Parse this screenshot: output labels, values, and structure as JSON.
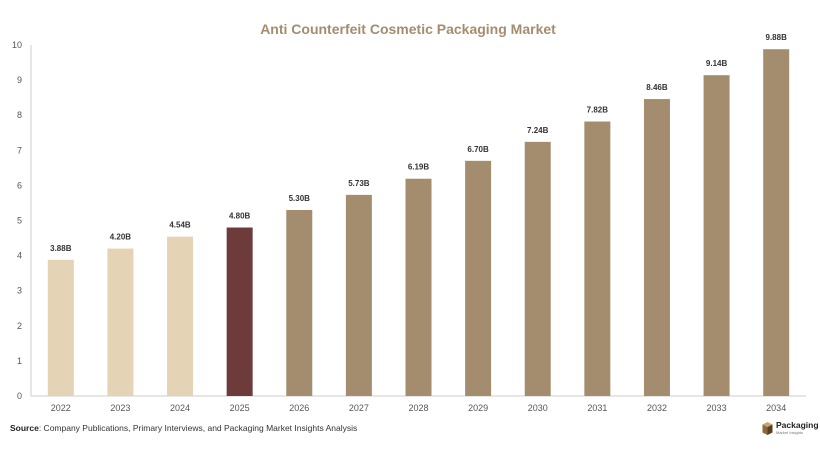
{
  "colors": {
    "title": "#a38d6e",
    "historic": "#e4d3b4",
    "current": "#6e3b3b",
    "forecast": "#a38d6e",
    "axis": "#cccccc"
  },
  "source": {
    "label": "Source",
    "text": ": Company Publications, Primary Interviews, and Packaging Market Insights Analysis"
  },
  "logo": {
    "icon": "box-logo-icon",
    "word": "Packaging",
    "sub": "Market Insights"
  },
  "chart_data": {
    "type": "bar",
    "title": "Anti Counterfeit Cosmetic Packaging Market",
    "xlabel": "",
    "ylabel": "",
    "ylim": [
      0,
      10
    ],
    "yticks": [
      0,
      1,
      2,
      3,
      4,
      5,
      6,
      7,
      8,
      9,
      10
    ],
    "grid": false,
    "categories": [
      "2022",
      "2023",
      "2024",
      "2025",
      "2026",
      "2027",
      "2028",
      "2029",
      "2030",
      "2031",
      "2032",
      "2033",
      "2034"
    ],
    "values": [
      3.88,
      4.2,
      4.54,
      4.8,
      5.3,
      5.73,
      6.19,
      6.7,
      7.24,
      7.82,
      8.46,
      9.14,
      9.88
    ],
    "data_labels": [
      "3.88B",
      "4.20B",
      "4.54B",
      "4.80B",
      "5.30B",
      "5.73B",
      "6.19B",
      "6.70B",
      "7.24B",
      "7.82B",
      "8.46B",
      "9.14B",
      "9.88B"
    ],
    "bar_groups": [
      "historic",
      "historic",
      "historic",
      "current",
      "forecast",
      "forecast",
      "forecast",
      "forecast",
      "forecast",
      "forecast",
      "forecast",
      "forecast",
      "forecast"
    ]
  }
}
